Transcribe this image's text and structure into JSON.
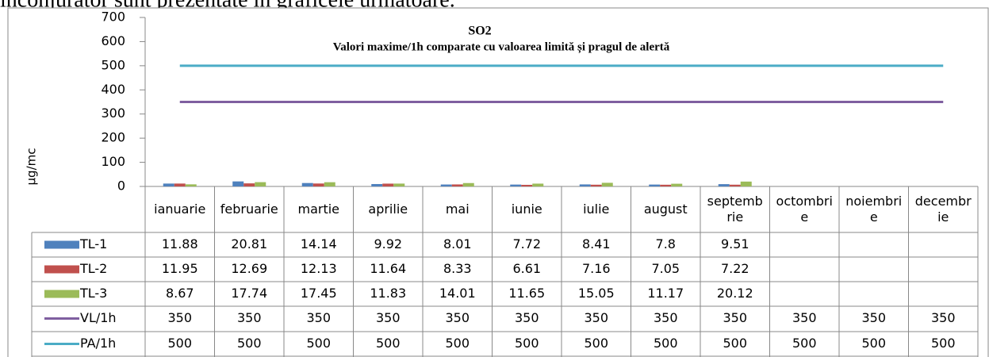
{
  "intro": "înconjurător sunt prezentate în graficele următoare.",
  "chart_data": {
    "type": "bar",
    "title": "SO2",
    "subtitle": "Valori maxime/1h comparate cu valoarea limită și pragul de alertă",
    "ylabel": "µg/mc",
    "categories": [
      "ianuarie",
      "februarie",
      "martie",
      "aprilie",
      "mai",
      "iunie",
      "iulie",
      "august",
      "septembrie",
      "octombrie",
      "noiembrie",
      "decembrie"
    ],
    "series": [
      {
        "name": "TL-1",
        "type": "bar",
        "color": "#4f81bd",
        "values": [
          11.88,
          20.81,
          14.14,
          9.92,
          8.01,
          7.72,
          8.41,
          7.8,
          9.51,
          null,
          null,
          null
        ]
      },
      {
        "name": "TL-2",
        "type": "bar",
        "color": "#c0504d",
        "values": [
          11.95,
          12.69,
          12.13,
          11.64,
          8.33,
          6.61,
          7.16,
          7.05,
          7.22,
          null,
          null,
          null
        ]
      },
      {
        "name": "TL-3",
        "type": "bar",
        "color": "#9bbb59",
        "values": [
          8.67,
          17.74,
          17.45,
          11.83,
          14.01,
          11.65,
          15.05,
          11.17,
          20.12,
          null,
          null,
          null
        ]
      },
      {
        "name": "VL/1h",
        "type": "line",
        "color": "#7f5fa0",
        "values": [
          350,
          350,
          350,
          350,
          350,
          350,
          350,
          350,
          350,
          350,
          350,
          350
        ]
      },
      {
        "name": "PA/1h",
        "type": "line",
        "color": "#4bacc6",
        "values": [
          500,
          500,
          500,
          500,
          500,
          500,
          500,
          500,
          500,
          500,
          500,
          500
        ]
      }
    ],
    "ylim": [
      0,
      700
    ],
    "yticks": [
      0,
      100,
      200,
      300,
      400,
      500,
      600,
      700
    ],
    "data_table": true
  }
}
